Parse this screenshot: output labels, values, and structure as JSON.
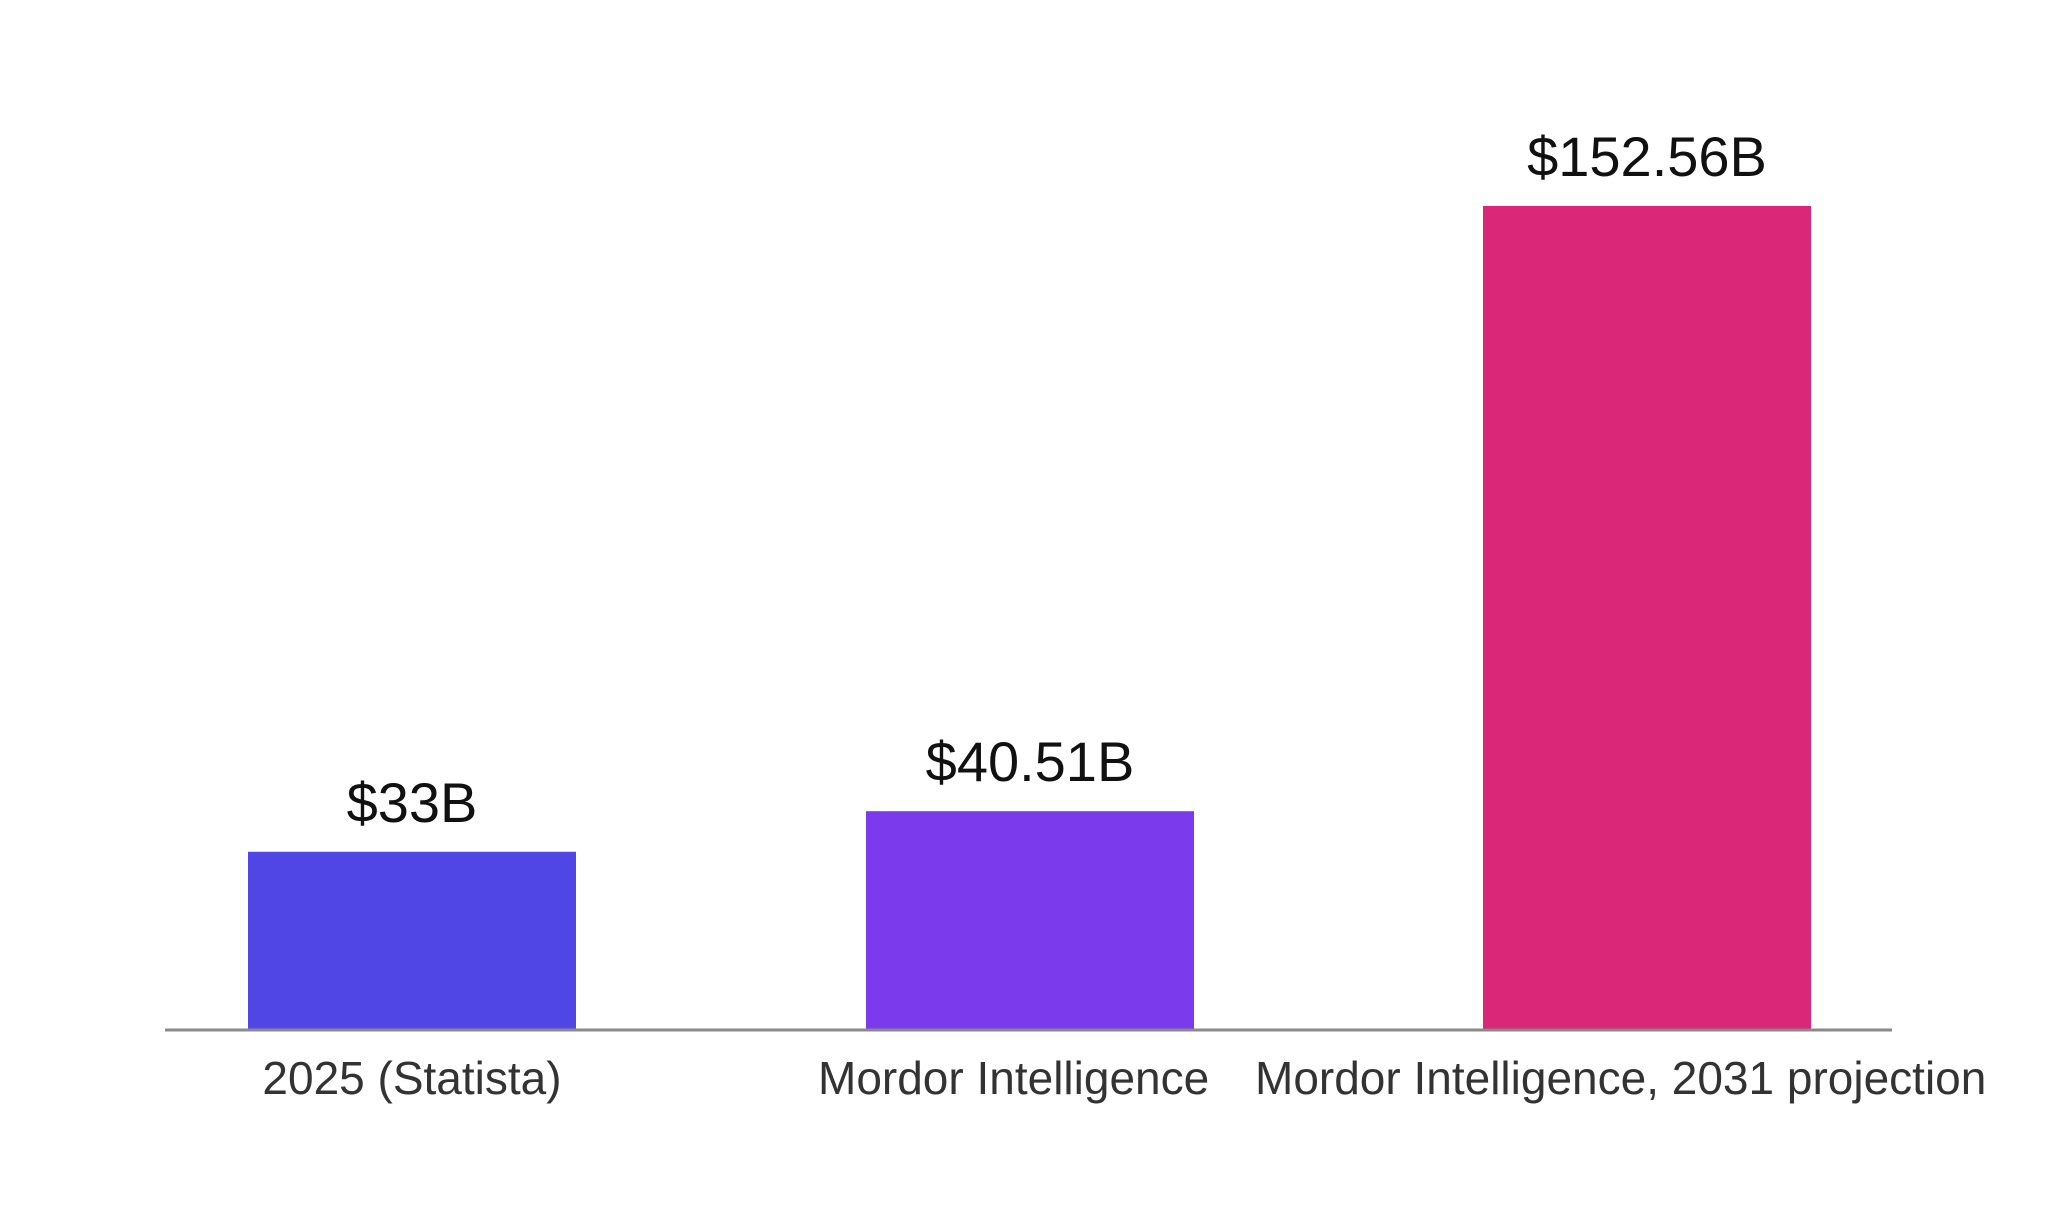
{
  "chart_data": {
    "type": "bar",
    "title": "",
    "xlabel": "",
    "ylabel": "",
    "categories": [
      "2025 (Statista)",
      "Mordor Intelligence",
      "Mordor Intelligence, 2031 projection"
    ],
    "values": [
      33,
      40.51,
      152.56
    ],
    "value_labels": [
      "$33B",
      "$40.51B",
      "$152.56B"
    ],
    "unit": "$B",
    "colors": [
      "#5046e5",
      "#7c3aed",
      "#db2777"
    ],
    "ylim": [
      0,
      152.56
    ],
    "grid": false,
    "legend": "none",
    "axis_color": "#8a8a8a"
  }
}
